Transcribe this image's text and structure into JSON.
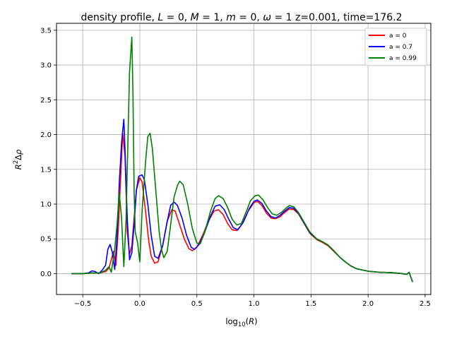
{
  "chart_data": {
    "type": "line",
    "title": "density profile, L = 0, M = 1, m = 0, ω = 1 z=0.001, time=176.2",
    "title_parts": {
      "prefix": "density profile, ",
      "L_sym": "L",
      "L_val": " = 0, ",
      "M_sym": "M",
      "M_val": " = 1, ",
      "m_sym": "m",
      "m_val": " = 0, ",
      "w_sym": "ω",
      "w_val": " = 1 z=0.001, time=176.2"
    },
    "xlabel": "log10(R)",
    "xlabel_parts": {
      "pre": "log",
      "sub": "10",
      "open": "(",
      "var": "R",
      "close": ")"
    },
    "ylabel": "R2Δρ",
    "ylabel_parts": {
      "R": "R",
      "sup": "2",
      "delta": "Δ",
      "rho": "ρ"
    },
    "xlim": [
      -0.73,
      2.55
    ],
    "ylim": [
      -0.3,
      3.6
    ],
    "xticks": [
      -0.5,
      0.0,
      0.5,
      1.0,
      1.5,
      2.0,
      2.5
    ],
    "xtick_labels": [
      "−0.5",
      "0.0",
      "0.5",
      "1.0",
      "1.5",
      "2.0",
      "2.5"
    ],
    "yticks": [
      0.0,
      0.5,
      1.0,
      1.5,
      2.0,
      2.5,
      3.0,
      3.5
    ],
    "ytick_labels": [
      "0.0",
      "0.5",
      "1.0",
      "1.5",
      "2.0",
      "2.5",
      "3.0",
      "3.5"
    ],
    "grid": true,
    "legend_position": "top-right",
    "series": [
      {
        "name": "a = 0",
        "color": "#ff0000",
        "points": [
          [
            -0.6,
            0
          ],
          [
            -0.5,
            0
          ],
          [
            -0.42,
            0.01
          ],
          [
            -0.35,
            0.01
          ],
          [
            -0.3,
            0.03
          ],
          [
            -0.27,
            0.08
          ],
          [
            -0.25,
            0.2
          ],
          [
            -0.23,
            0.32
          ],
          [
            -0.21,
            0.12
          ],
          [
            -0.19,
            0.6
          ],
          [
            -0.17,
            1.3
          ],
          [
            -0.15,
            2.02
          ],
          [
            -0.13,
            1.7
          ],
          [
            -0.11,
            0.6
          ],
          [
            -0.09,
            0.28
          ],
          [
            -0.07,
            0.4
          ],
          [
            -0.05,
            0.8
          ],
          [
            -0.03,
            1.2
          ],
          [
            0.0,
            1.38
          ],
          [
            0.02,
            1.32
          ],
          [
            0.05,
            0.9
          ],
          [
            0.08,
            0.45
          ],
          [
            0.1,
            0.25
          ],
          [
            0.13,
            0.15
          ],
          [
            0.16,
            0.17
          ],
          [
            0.2,
            0.4
          ],
          [
            0.24,
            0.75
          ],
          [
            0.28,
            0.92
          ],
          [
            0.31,
            0.9
          ],
          [
            0.35,
            0.7
          ],
          [
            0.39,
            0.5
          ],
          [
            0.43,
            0.36
          ],
          [
            0.46,
            0.33
          ],
          [
            0.5,
            0.38
          ],
          [
            0.55,
            0.55
          ],
          [
            0.6,
            0.75
          ],
          [
            0.65,
            0.9
          ],
          [
            0.69,
            0.92
          ],
          [
            0.73,
            0.85
          ],
          [
            0.77,
            0.72
          ],
          [
            0.81,
            0.63
          ],
          [
            0.85,
            0.62
          ],
          [
            0.9,
            0.72
          ],
          [
            0.95,
            0.9
          ],
          [
            1.0,
            1.02
          ],
          [
            1.03,
            1.04
          ],
          [
            1.07,
            0.98
          ],
          [
            1.11,
            0.87
          ],
          [
            1.15,
            0.8
          ],
          [
            1.19,
            0.79
          ],
          [
            1.23,
            0.82
          ],
          [
            1.27,
            0.88
          ],
          [
            1.31,
            0.93
          ],
          [
            1.35,
            0.92
          ],
          [
            1.39,
            0.86
          ],
          [
            1.44,
            0.72
          ],
          [
            1.49,
            0.58
          ],
          [
            1.55,
            0.49
          ],
          [
            1.6,
            0.45
          ],
          [
            1.65,
            0.4
          ],
          [
            1.7,
            0.32
          ],
          [
            1.75,
            0.24
          ],
          [
            1.8,
            0.17
          ],
          [
            1.85,
            0.11
          ],
          [
            1.9,
            0.07
          ],
          [
            2.0,
            0.035
          ],
          [
            2.1,
            0.02
          ],
          [
            2.2,
            0.015
          ],
          [
            2.3,
            0.0
          ],
          [
            2.34,
            -0.01
          ],
          [
            2.36,
            0.02
          ],
          [
            2.39,
            -0.12
          ]
        ]
      },
      {
        "name": "a = 0.7",
        "color": "#0000ff",
        "points": [
          [
            -0.6,
            0
          ],
          [
            -0.5,
            0
          ],
          [
            -0.45,
            0.01
          ],
          [
            -0.42,
            0.04
          ],
          [
            -0.39,
            0.03
          ],
          [
            -0.36,
            0.0
          ],
          [
            -0.33,
            0.05
          ],
          [
            -0.3,
            0.12
          ],
          [
            -0.28,
            0.35
          ],
          [
            -0.26,
            0.42
          ],
          [
            -0.24,
            0.3
          ],
          [
            -0.22,
            0.06
          ],
          [
            -0.2,
            0.5
          ],
          [
            -0.18,
            1.3
          ],
          [
            -0.16,
            1.88
          ],
          [
            -0.14,
            2.22
          ],
          [
            -0.13,
            1.8
          ],
          [
            -0.11,
            0.8
          ],
          [
            -0.09,
            0.2
          ],
          [
            -0.07,
            0.3
          ],
          [
            -0.05,
            0.7
          ],
          [
            -0.03,
            1.2
          ],
          [
            -0.01,
            1.4
          ],
          [
            0.02,
            1.42
          ],
          [
            0.04,
            1.35
          ],
          [
            0.07,
            1.0
          ],
          [
            0.1,
            0.55
          ],
          [
            0.13,
            0.25
          ],
          [
            0.16,
            0.22
          ],
          [
            0.2,
            0.4
          ],
          [
            0.24,
            0.75
          ],
          [
            0.27,
            0.98
          ],
          [
            0.3,
            1.03
          ],
          [
            0.33,
            0.98
          ],
          [
            0.37,
            0.8
          ],
          [
            0.41,
            0.55
          ],
          [
            0.45,
            0.38
          ],
          [
            0.48,
            0.35
          ],
          [
            0.52,
            0.42
          ],
          [
            0.57,
            0.6
          ],
          [
            0.62,
            0.83
          ],
          [
            0.66,
            0.97
          ],
          [
            0.7,
            0.99
          ],
          [
            0.74,
            0.92
          ],
          [
            0.78,
            0.78
          ],
          [
            0.82,
            0.66
          ],
          [
            0.86,
            0.63
          ],
          [
            0.91,
            0.75
          ],
          [
            0.96,
            0.94
          ],
          [
            1.0,
            1.04
          ],
          [
            1.03,
            1.06
          ],
          [
            1.07,
            1.01
          ],
          [
            1.11,
            0.9
          ],
          [
            1.15,
            0.82
          ],
          [
            1.19,
            0.8
          ],
          [
            1.23,
            0.84
          ],
          [
            1.27,
            0.9
          ],
          [
            1.31,
            0.95
          ],
          [
            1.35,
            0.94
          ],
          [
            1.39,
            0.87
          ],
          [
            1.44,
            0.73
          ],
          [
            1.49,
            0.59
          ],
          [
            1.55,
            0.5
          ],
          [
            1.6,
            0.46
          ],
          [
            1.65,
            0.41
          ],
          [
            1.7,
            0.33
          ],
          [
            1.75,
            0.24
          ],
          [
            1.8,
            0.17
          ],
          [
            1.85,
            0.11
          ],
          [
            1.9,
            0.07
          ],
          [
            2.0,
            0.035
          ],
          [
            2.1,
            0.02
          ],
          [
            2.2,
            0.015
          ],
          [
            2.3,
            0.0
          ],
          [
            2.34,
            -0.01
          ],
          [
            2.36,
            0.02
          ],
          [
            2.39,
            -0.12
          ]
        ]
      },
      {
        "name": "a = 0.99",
        "color": "#008000",
        "points": [
          [
            -0.6,
            0
          ],
          [
            -0.5,
            0
          ],
          [
            -0.42,
            0.01
          ],
          [
            -0.35,
            0.01
          ],
          [
            -0.3,
            0.05
          ],
          [
            -0.27,
            0.1
          ],
          [
            -0.25,
            0.02
          ],
          [
            -0.22,
            0.35
          ],
          [
            -0.2,
            0.7
          ],
          [
            -0.18,
            1.16
          ],
          [
            -0.16,
            0.8
          ],
          [
            -0.14,
            0.1
          ],
          [
            -0.12,
            0.8
          ],
          [
            -0.1,
            2.2
          ],
          [
            -0.09,
            2.9
          ],
          [
            -0.07,
            3.4
          ],
          [
            -0.06,
            2.6
          ],
          [
            -0.05,
            1.2
          ],
          [
            -0.04,
            0.6
          ],
          [
            -0.02,
            0.45
          ],
          [
            0.0,
            0.17
          ],
          [
            0.02,
            0.9
          ],
          [
            0.05,
            1.6
          ],
          [
            0.07,
            1.97
          ],
          [
            0.09,
            2.02
          ],
          [
            0.11,
            1.8
          ],
          [
            0.14,
            1.2
          ],
          [
            0.17,
            0.6
          ],
          [
            0.19,
            0.35
          ],
          [
            0.21,
            0.23
          ],
          [
            0.24,
            0.32
          ],
          [
            0.27,
            0.7
          ],
          [
            0.3,
            1.1
          ],
          [
            0.33,
            1.27
          ],
          [
            0.35,
            1.33
          ],
          [
            0.38,
            1.28
          ],
          [
            0.42,
            1.0
          ],
          [
            0.46,
            0.65
          ],
          [
            0.5,
            0.44
          ],
          [
            0.53,
            0.43
          ],
          [
            0.57,
            0.6
          ],
          [
            0.62,
            0.9
          ],
          [
            0.66,
            1.08
          ],
          [
            0.69,
            1.12
          ],
          [
            0.73,
            1.08
          ],
          [
            0.77,
            0.95
          ],
          [
            0.81,
            0.78
          ],
          [
            0.85,
            0.7
          ],
          [
            0.89,
            0.72
          ],
          [
            0.93,
            0.88
          ],
          [
            0.97,
            1.05
          ],
          [
            1.01,
            1.12
          ],
          [
            1.04,
            1.13
          ],
          [
            1.08,
            1.06
          ],
          [
            1.12,
            0.95
          ],
          [
            1.16,
            0.86
          ],
          [
            1.2,
            0.84
          ],
          [
            1.24,
            0.88
          ],
          [
            1.28,
            0.94
          ],
          [
            1.31,
            0.98
          ],
          [
            1.35,
            0.96
          ],
          [
            1.39,
            0.88
          ],
          [
            1.44,
            0.74
          ],
          [
            1.49,
            0.6
          ],
          [
            1.55,
            0.5
          ],
          [
            1.6,
            0.46
          ],
          [
            1.65,
            0.41
          ],
          [
            1.7,
            0.33
          ],
          [
            1.75,
            0.24
          ],
          [
            1.8,
            0.17
          ],
          [
            1.85,
            0.11
          ],
          [
            1.9,
            0.07
          ],
          [
            2.0,
            0.035
          ],
          [
            2.1,
            0.02
          ],
          [
            2.2,
            0.015
          ],
          [
            2.3,
            0.0
          ],
          [
            2.34,
            -0.01
          ],
          [
            2.36,
            0.02
          ],
          [
            2.39,
            -0.12
          ]
        ]
      }
    ]
  }
}
